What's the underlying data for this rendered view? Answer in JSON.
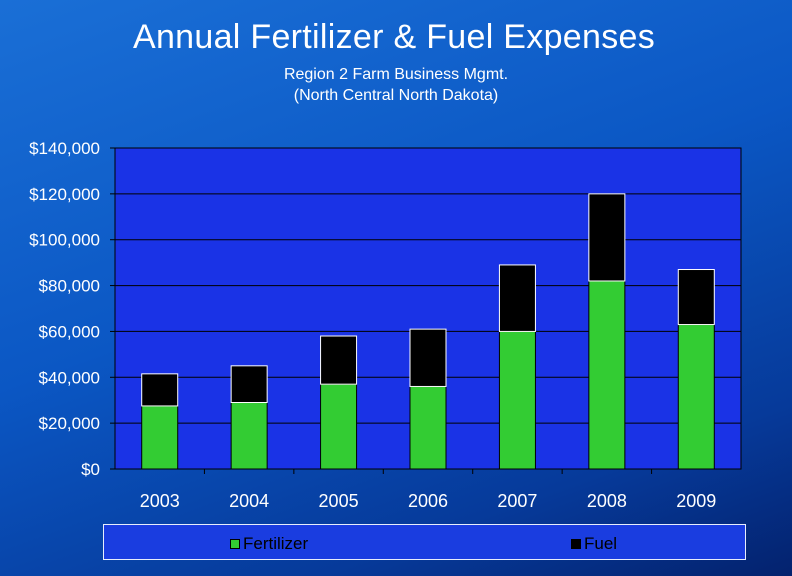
{
  "chart_data": {
    "type": "bar",
    "stacked": true,
    "title": "Annual Fertilizer & Fuel Expenses",
    "subtitle_lines": [
      "Region 2 Farm Business Mgmt.",
      "(North Central North Dakota)"
    ],
    "categories": [
      "2003",
      "2004",
      "2005",
      "2006",
      "2007",
      "2008",
      "2009"
    ],
    "series": [
      {
        "name": "Fertilizer",
        "color": "#33cc33",
        "values": [
          27500,
          29000,
          37000,
          36000,
          60000,
          82000,
          63000
        ]
      },
      {
        "name": "Fuel",
        "color": "#000000",
        "values": [
          14000,
          16000,
          21000,
          25000,
          29000,
          38000,
          24000
        ]
      }
    ],
    "ylim": [
      0,
      140000
    ],
    "yticks": [
      0,
      20000,
      40000,
      60000,
      80000,
      100000,
      120000,
      140000
    ],
    "ytick_labels": [
      "$0",
      "$20,000",
      "$40,000",
      "$60,000",
      "$80,000",
      "$100,000",
      "$120,000",
      "$140,000"
    ],
    "xlabel": "",
    "ylabel": "",
    "grid": true,
    "legend_position": "bottom",
    "plot_background": "#1a33e6",
    "grid_color": "#000000"
  }
}
